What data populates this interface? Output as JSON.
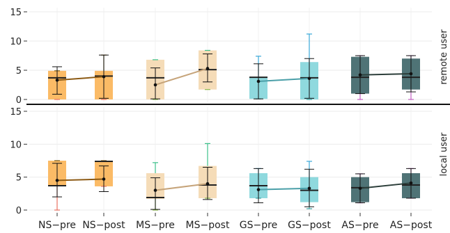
{
  "chart_data": {
    "type": "box",
    "categories": [
      "NS−pre",
      "NS−post",
      "MS−pre",
      "MS−post",
      "GS−pre",
      "GS−post",
      "AS−pre",
      "AS−post"
    ],
    "ylim": [
      0,
      15
    ],
    "yticks": [
      0,
      5,
      10,
      15
    ],
    "grid": true,
    "colors": {
      "NS": {
        "fill": "#fbbb66",
        "line": "#8c5a14",
        "whisker_low": "#e87060",
        "whisker_high": "#7a5a10"
      },
      "MS": {
        "fill": "#f5dcb8",
        "line": "#c6a47a",
        "whisker_low": "#8ab84a",
        "whisker_high": "#3cc08a"
      },
      "GS": {
        "fill": "#8fd9de",
        "line": "#4a9fa8",
        "whisker_low": "#3aa0a0",
        "whisker_high": "#3aa8d8"
      },
      "AS": {
        "fill": "#4f7376",
        "line": "#2c3e3a",
        "whisker_low": "#c060c0",
        "whisker_high": "#c060c0"
      }
    },
    "panels": [
      {
        "label": "remote user",
        "boxes": [
          {
            "q1": 0.0,
            "median": 3.7,
            "q3": 4.9,
            "mean": 3.3,
            "err_low": 0.9,
            "err_high": 5.6,
            "wlo": 0.0,
            "whi": 4.9
          },
          {
            "q1": 0.0,
            "median": 4.0,
            "q3": 4.9,
            "mean": 3.9,
            "err_low": 0.2,
            "err_high": 7.6,
            "wlo": 0.0,
            "whi": 7.6
          },
          {
            "q1": 0.0,
            "median": 3.7,
            "q3": 6.8,
            "mean": 2.5,
            "err_low": 0.1,
            "err_high": 5.4,
            "wlo": 0.0,
            "whi": 6.8
          },
          {
            "q1": 1.7,
            "median": 5.1,
            "q3": 8.4,
            "mean": 5.3,
            "err_low": 3.0,
            "err_high": 7.8,
            "wlo": 1.7,
            "whi": 8.4
          },
          {
            "q1": 0.1,
            "median": 3.8,
            "q3": 3.9,
            "mean": 3.1,
            "err_low": 0.1,
            "err_high": 6.1,
            "wlo": 0.1,
            "whi": 7.4
          },
          {
            "q1": 0.0,
            "median": 3.7,
            "q3": 6.4,
            "mean": 3.6,
            "err_low": 0.2,
            "err_high": 7.0,
            "wlo": 0.0,
            "whi": 11.2
          },
          {
            "q1": 1.0,
            "median": 3.8,
            "q3": 7.3,
            "mean": 4.2,
            "err_low": 1.0,
            "err_high": 7.5,
            "wlo": 0.0,
            "whi": 7.5
          },
          {
            "q1": 1.7,
            "median": 3.8,
            "q3": 7.0,
            "mean": 4.4,
            "err_low": 1.3,
            "err_high": 7.5,
            "wlo": 0.0,
            "whi": 7.5
          }
        ]
      },
      {
        "label": "local user",
        "boxes": [
          {
            "q1": 3.6,
            "median": 3.7,
            "q3": 7.5,
            "mean": 4.5,
            "err_low": 2.0,
            "err_high": 7.1,
            "wlo": 0.0,
            "whi": 7.5
          },
          {
            "q1": 3.6,
            "median": 7.4,
            "q3": 7.5,
            "mean": 4.7,
            "err_low": 2.8,
            "err_high": 6.7,
            "wlo": 3.6,
            "whi": 7.5
          },
          {
            "q1": 1.7,
            "median": 1.9,
            "q3": 5.6,
            "mean": 3.0,
            "err_low": 0.1,
            "err_high": 4.9,
            "wlo": 0.0,
            "whi": 7.2
          },
          {
            "q1": 1.8,
            "median": 3.8,
            "q3": 6.7,
            "mean": 4.0,
            "err_low": 1.6,
            "err_high": 6.5,
            "wlo": 1.8,
            "whi": 10.1
          },
          {
            "q1": 1.8,
            "median": 3.7,
            "q3": 5.6,
            "mean": 3.1,
            "err_low": 1.1,
            "err_high": 6.3,
            "wlo": 1.8,
            "whi": 6.3
          },
          {
            "q1": 1.2,
            "median": 3.0,
            "q3": 5.0,
            "mean": 3.3,
            "err_low": 0.5,
            "err_high": 6.2,
            "wlo": 0.2,
            "whi": 7.4
          },
          {
            "q1": 1.2,
            "median": 3.4,
            "q3": 5.0,
            "mean": 3.3,
            "err_low": 1.1,
            "err_high": 5.5,
            "wlo": 1.1,
            "whi": 5.5
          },
          {
            "q1": 1.8,
            "median": 3.8,
            "q3": 5.6,
            "mean": 4.1,
            "err_low": 1.8,
            "err_high": 6.3,
            "wlo": 1.8,
            "whi": 6.3
          }
        ]
      }
    ]
  }
}
